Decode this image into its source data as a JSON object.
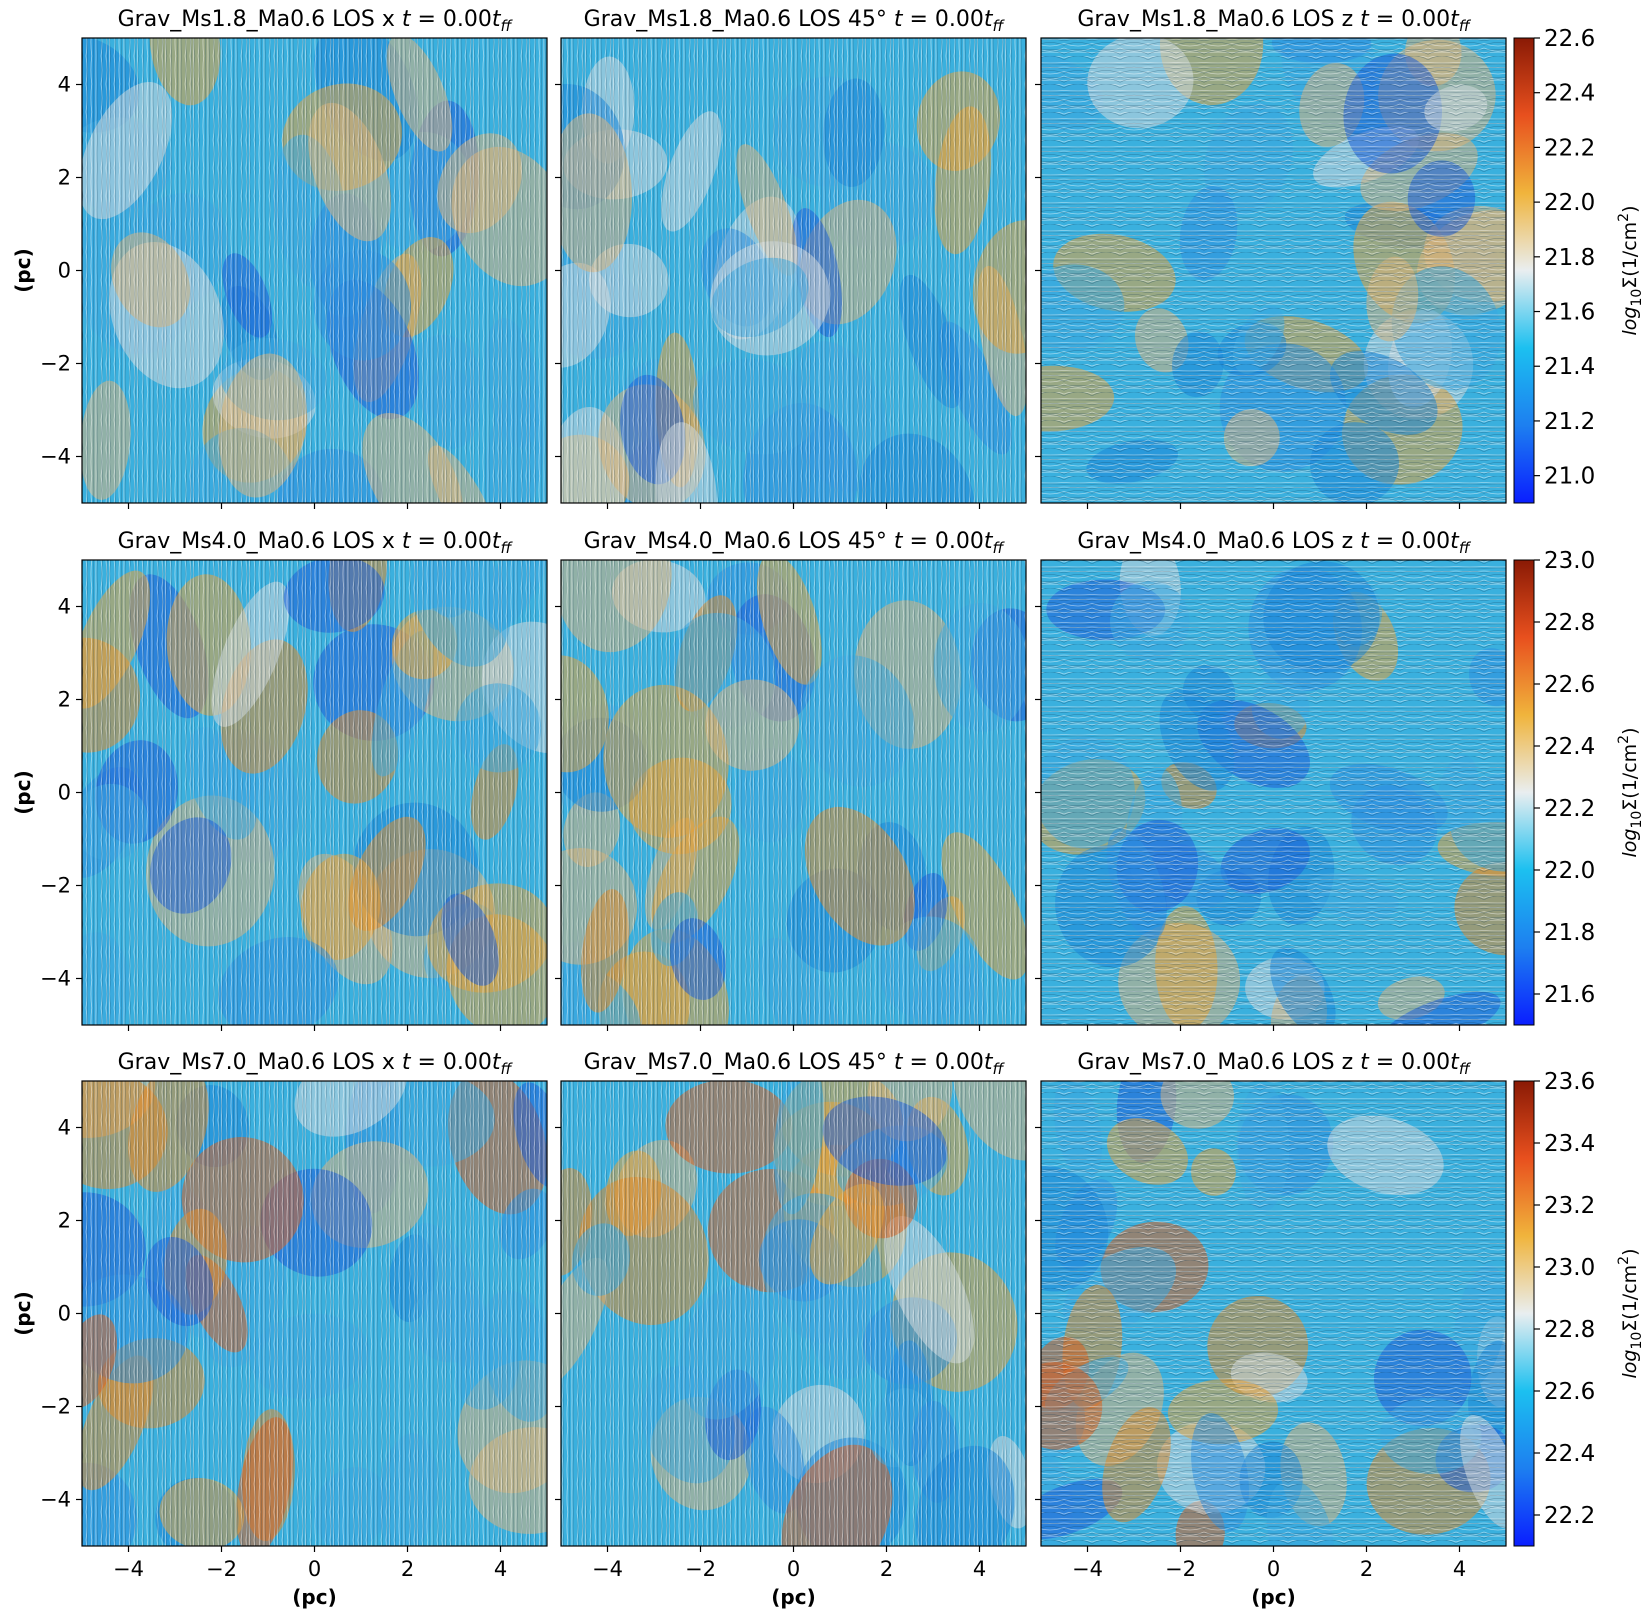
{
  "chart_data": {
    "type": "heatmap",
    "description_kind": "column density maps with magnetic field line-integral-convolution texture",
    "xlabel": "(pc)",
    "ylabel": "(pc)",
    "xlim": [
      -5,
      5
    ],
    "ylim": [
      -5,
      5
    ],
    "xticks": [
      -4,
      -2,
      0,
      2,
      4
    ],
    "yticks": [
      -4,
      -2,
      0,
      2,
      4
    ],
    "xtick_labels": [
      "−4",
      "−2",
      "0",
      "2",
      "4"
    ],
    "ytick_labels": [
      "−4",
      "−2",
      "0",
      "2",
      "4"
    ],
    "colormap": {
      "name": "diverging blue-white-orange-red",
      "stops": [
        "#0a1eff",
        "#1d7ff0",
        "#1cc0f0",
        "#e9eef0",
        "#f0b43c",
        "#e8501e",
        "#8a1a05"
      ]
    },
    "rows": [
      {
        "name": "Grav_Ms1.8_Ma0.6",
        "panels": [
          {
            "title_prefix": "Grav_Ms1.8_Ma0.6 LOS x ",
            "los": "x",
            "time": "0.00",
            "texture": "vertical"
          },
          {
            "title_prefix": "Grav_Ms1.8_Ma0.6 LOS 45° ",
            "los": "45",
            "time": "0.00",
            "texture": "vertical"
          },
          {
            "title_prefix": "Grav_Ms1.8_Ma0.6 LOS z ",
            "los": "z",
            "time": "0.00",
            "texture": "swirl"
          }
        ],
        "colorbar": {
          "label": "log10 Σ (1/cm^2)",
          "range": [
            20.9,
            22.6
          ],
          "ticks": [
            21.0,
            21.2,
            21.4,
            21.6,
            21.8,
            22.0,
            22.2,
            22.4,
            22.6
          ],
          "tick_labels": [
            "21.0",
            "21.2",
            "21.4",
            "21.6",
            "21.8",
            "22.0",
            "22.2",
            "22.4",
            "22.6"
          ]
        }
      },
      {
        "name": "Grav_Ms4.0_Ma0.6",
        "panels": [
          {
            "title_prefix": "Grav_Ms4.0_Ma0.6 LOS x ",
            "los": "x",
            "time": "0.00",
            "texture": "vertical"
          },
          {
            "title_prefix": "Grav_Ms4.0_Ma0.6 LOS 45° ",
            "los": "45",
            "time": "0.00",
            "texture": "vertical"
          },
          {
            "title_prefix": "Grav_Ms4.0_Ma0.6 LOS z ",
            "los": "z",
            "time": "0.00",
            "texture": "swirl"
          }
        ],
        "colorbar": {
          "label": "log10 Σ (1/cm^2)",
          "range": [
            21.5,
            23.0
          ],
          "ticks": [
            21.6,
            21.8,
            22.0,
            22.2,
            22.4,
            22.6,
            22.8,
            23.0
          ],
          "tick_labels": [
            "21.6",
            "21.8",
            "22.0",
            "22.2",
            "22.4",
            "22.6",
            "22.8",
            "23.0"
          ]
        }
      },
      {
        "name": "Grav_Ms7.0_Ma0.6",
        "panels": [
          {
            "title_prefix": "Grav_Ms7.0_Ma0.6 LOS x ",
            "los": "x",
            "time": "0.00",
            "texture": "vertical"
          },
          {
            "title_prefix": "Grav_Ms7.0_Ma0.6 LOS 45° ",
            "los": "45",
            "time": "0.00",
            "texture": "vertical"
          },
          {
            "title_prefix": "Grav_Ms7.0_Ma0.6 LOS z ",
            "los": "z",
            "time": "0.00",
            "texture": "swirl"
          }
        ],
        "colorbar": {
          "label": "log10 Σ (1/cm^2)",
          "range": [
            22.1,
            23.6
          ],
          "ticks": [
            22.2,
            22.4,
            22.6,
            22.8,
            23.0,
            23.2,
            23.4,
            23.6
          ],
          "tick_labels": [
            "22.2",
            "22.4",
            "22.6",
            "22.8",
            "23.0",
            "23.2",
            "23.4",
            "23.6"
          ]
        }
      }
    ]
  },
  "labels": {
    "time_var": "t",
    "equals": " = ",
    "time_unit_sub": "ff",
    "cb_label_log": "log",
    "cb_label_sub": "10",
    "cb_label_sigma": "Σ(1/cm",
    "cb_label_exp": "2",
    "cb_label_close": ")"
  }
}
